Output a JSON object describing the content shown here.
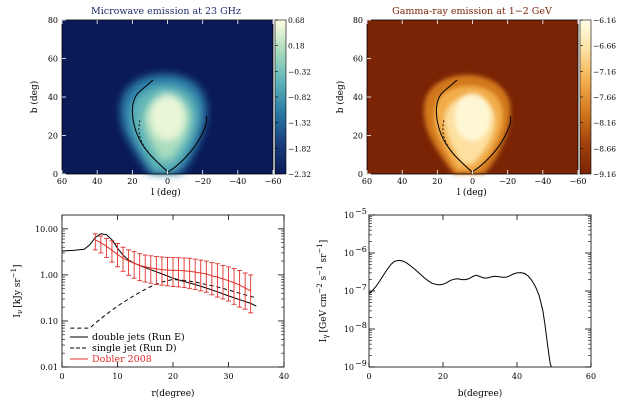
{
  "chart_data": [
    {
      "type": "heatmap",
      "title": "Microwave emission at 23 GHz",
      "xlabel": "l (deg)",
      "ylabel": "b (deg)",
      "xlim": [
        60,
        -60
      ],
      "ylim": [
        0,
        80
      ],
      "xticks": [
        "60",
        "40",
        "20",
        "0",
        "−20",
        "−40",
        "−60"
      ],
      "yticks": [
        "0",
        "20",
        "40",
        "60",
        "80"
      ],
      "colorbar_ticks": [
        "0.68",
        "0.18",
        "−0.32",
        "−0.82",
        "−1.32",
        "−1.82",
        "−2.32"
      ],
      "colorbar_range": [
        -2.32,
        0.68
      ],
      "colormap": [
        "#0a1a57",
        "#183f7e",
        "#2a7aa6",
        "#5fb4b7",
        "#a9dcbd",
        "#ffffe0"
      ],
      "background_color": "#0a1a57",
      "title_color": "#1c2d6b"
    },
    {
      "type": "heatmap",
      "title": "Gamma-ray emission at 1−2 GeV",
      "xlabel": "l (deg)",
      "ylabel": "b (deg)",
      "xlim": [
        60,
        -60
      ],
      "ylim": [
        0,
        80
      ],
      "xticks": [
        "60",
        "40",
        "20",
        "0",
        "−20",
        "−40",
        "−60"
      ],
      "yticks": [
        "0",
        "20",
        "40",
        "60",
        "80"
      ],
      "colorbar_ticks": [
        "−6.16",
        "−6.66",
        "−7.16",
        "−7.66",
        "−8.16",
        "−8.66",
        "−9.16"
      ],
      "colorbar_range": [
        -9.16,
        -6.16
      ],
      "colormap": [
        "#7a2405",
        "#a0420d",
        "#d2781e",
        "#f2ad4c",
        "#fddfa0",
        "#ffffe6"
      ],
      "background_color": "#7a2405",
      "title_color": "#7a2405"
    },
    {
      "type": "line",
      "xlabel": "r(degree)",
      "ylabel": "Iν [kJy sr⁻¹]",
      "ylabel_main": "I",
      "ylabel_sub": "ν",
      "ylabel_unit": "[kJy sr",
      "ylabel_sup": "−1",
      "ylabel_end": "]",
      "xlim": [
        0,
        40
      ],
      "ylim": [
        0.01,
        20
      ],
      "yscale": "log",
      "xticks": [
        "0",
        "10",
        "20",
        "30",
        "40"
      ],
      "yticks": [
        "0.01",
        "0.10",
        "1.00",
        "10.00"
      ],
      "legend": [
        "double jets (Run E)",
        "single jet (Run D)",
        "Dobler 2008"
      ],
      "series": [
        {
          "name": "double jets (Run E)",
          "style": "solid",
          "x": [
            0,
            2,
            4,
            5,
            6,
            7,
            8,
            9,
            10,
            11,
            12,
            13,
            14,
            16,
            18,
            20,
            22,
            24,
            26,
            28,
            30,
            32,
            34,
            35
          ],
          "y": [
            3.3,
            3.4,
            3.6,
            4.5,
            6.5,
            7.8,
            7.5,
            5.8,
            3.8,
            2.7,
            2.1,
            1.8,
            1.6,
            1.3,
            1.05,
            0.85,
            0.72,
            0.62,
            0.52,
            0.43,
            0.35,
            0.29,
            0.24,
            0.21
          ]
        },
        {
          "name": "single jet (Run D)",
          "style": "dashed",
          "x": [
            1.5,
            2,
            3,
            4,
            5,
            6,
            8,
            10,
            12,
            14,
            16,
            18,
            20,
            22,
            24,
            26,
            28,
            30,
            32,
            34,
            35
          ],
          "y": [
            0.07,
            0.07,
            0.07,
            0.07,
            0.07,
            0.09,
            0.14,
            0.21,
            0.3,
            0.42,
            0.56,
            0.7,
            0.8,
            0.76,
            0.7,
            0.62,
            0.55,
            0.47,
            0.4,
            0.34,
            0.32
          ]
        },
        {
          "name": "Dobler 2008",
          "style": "errorbar",
          "color": "#e0302a",
          "x": [
            6,
            7,
            8,
            9,
            10,
            11,
            12,
            13,
            14,
            15,
            16,
            17,
            18,
            19,
            20,
            21,
            22,
            23,
            24,
            25,
            26,
            27,
            28,
            29,
            30,
            31,
            32,
            33,
            34
          ],
          "y": [
            5.8,
            5.0,
            4.2,
            3.4,
            2.8,
            2.3,
            2.0,
            1.8,
            1.6,
            1.5,
            1.42,
            1.35,
            1.3,
            1.28,
            1.25,
            1.25,
            1.22,
            1.2,
            1.15,
            1.1,
            1.05,
            0.95,
            0.9,
            0.82,
            0.75,
            0.68,
            0.6,
            0.52,
            0.45
          ],
          "ylow": [
            3.5,
            3.0,
            2.4,
            1.9,
            1.5,
            1.2,
            0.98,
            0.85,
            0.75,
            0.7,
            0.66,
            0.62,
            0.6,
            0.58,
            0.56,
            0.55,
            0.53,
            0.51,
            0.48,
            0.45,
            0.42,
            0.37,
            0.33,
            0.3,
            0.27,
            0.23,
            0.2,
            0.18,
            0.15
          ],
          "yhigh": [
            7.8,
            7.0,
            6.2,
            5.5,
            4.8,
            4.0,
            3.5,
            3.2,
            2.9,
            2.7,
            2.6,
            2.5,
            2.45,
            2.4,
            2.38,
            2.36,
            2.33,
            2.3,
            2.2,
            2.1,
            2.0,
            1.85,
            1.75,
            1.6,
            1.5,
            1.38,
            1.25,
            1.1,
            1.0
          ]
        }
      ]
    },
    {
      "type": "line",
      "xlabel": "b(degree)",
      "ylabel": "Iγ [GeV cm⁻² s⁻¹ sr⁻¹]",
      "ylabel_main": "I",
      "ylabel_sub": "γ",
      "ylabel_unit": "[GeV cm",
      "ylabel_sup1": "−2",
      "ylabel_s": " s",
      "ylabel_sup2": "−1",
      "ylabel_sr": " sr",
      "ylabel_sup3": "−1",
      "ylabel_end": "]",
      "xlim": [
        0,
        60
      ],
      "ylim": [
        1e-09,
        1e-05
      ],
      "yscale": "log",
      "xticks": [
        "0",
        "20",
        "40",
        "60"
      ],
      "ytick_base": "10",
      "ytick_exps": [
        "−9",
        "−8",
        "−7",
        "−6",
        "−5"
      ],
      "series": [
        {
          "name": "gamma-ray profile",
          "style": "solid",
          "x": [
            0,
            1,
            2,
            3,
            4,
            5,
            6,
            7,
            8,
            9,
            10,
            11,
            12,
            13,
            14,
            15,
            16,
            17,
            18,
            19,
            20,
            21,
            22,
            23,
            24,
            25,
            26,
            27,
            28,
            29,
            30,
            31,
            32,
            33,
            34,
            35,
            36,
            37,
            38,
            39,
            40,
            41,
            42,
            43,
            44,
            45,
            46,
            47,
            47.5,
            48,
            48.5,
            49,
            49.3
          ],
          "y": [
            8.5e-08,
            1.05e-07,
            1.35e-07,
            1.9e-07,
            2.7e-07,
            3.8e-07,
            5.1e-07,
            6.1e-07,
            6.4e-07,
            6.2e-07,
            5.6e-07,
            4.8e-07,
            4e-07,
            3.3e-07,
            2.7e-07,
            2.2e-07,
            1.85e-07,
            1.6e-07,
            1.5e-07,
            1.45e-07,
            1.5e-07,
            1.65e-07,
            1.9e-07,
            2.05e-07,
            2.1e-07,
            2e-07,
            2e-07,
            2.1e-07,
            2.4e-07,
            2.6e-07,
            2.4e-07,
            2.2e-07,
            2.2e-07,
            2.35e-07,
            2.45e-07,
            2.4e-07,
            2.3e-07,
            2.3e-07,
            2.5e-07,
            2.8e-07,
            3e-07,
            3.05e-07,
            2.9e-07,
            2.5e-07,
            1.9e-07,
            1.3e-07,
            7.5e-08,
            3e-08,
            1.4e-08,
            6e-09,
            2.5e-09,
            1.2e-09,
            8e-10
          ]
        }
      ]
    }
  ]
}
